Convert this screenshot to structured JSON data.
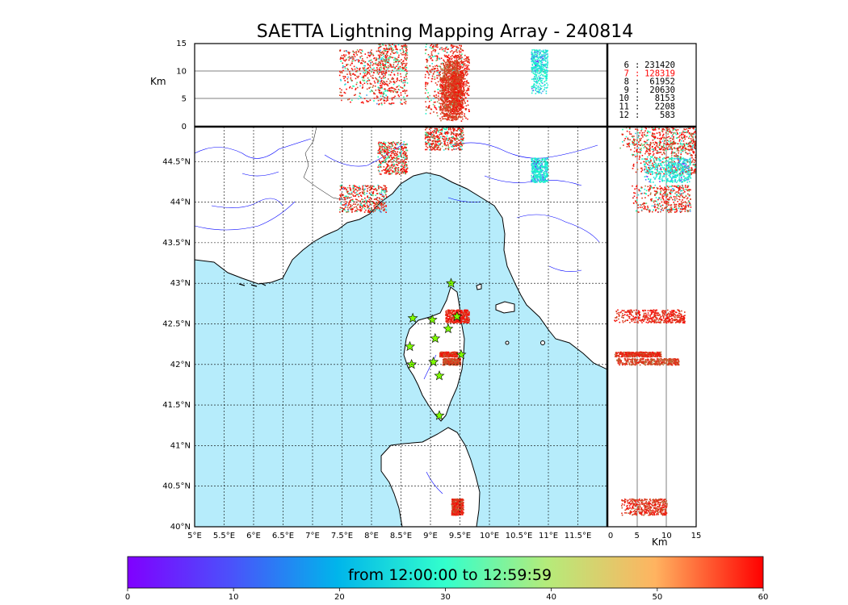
{
  "title": "SAETTA Lightning Mapping Array - 240814",
  "time_range_label": "from 12:00:00 to 12:59:59",
  "altitude_label": "Km",
  "map": {
    "lon_ticks": [
      "5°E",
      "5.5°E",
      "6°E",
      "6.5°E",
      "7°E",
      "7.5°E",
      "8°E",
      "8.5°E",
      "9°E",
      "9.5°E",
      "10°E",
      "10.5°E",
      "11°E",
      "11.5°E"
    ],
    "lat_ticks": [
      "40°N",
      "40.5°N",
      "41°N",
      "41.5°N",
      "42°N",
      "42.5°N",
      "43°N",
      "43.5°N",
      "44°N",
      "44.5°N"
    ],
    "lon_range": [
      5.0,
      12.0
    ],
    "lat_range": [
      40.0,
      44.93
    ],
    "sea_color": "#b6ecfb",
    "land_color": "#ffffff",
    "river_color": "#0000ff",
    "stations": [
      {
        "lon": 9.35,
        "lat": 43.0
      },
      {
        "lon": 8.7,
        "lat": 42.57
      },
      {
        "lon": 9.03,
        "lat": 42.55
      },
      {
        "lon": 9.45,
        "lat": 42.59
      },
      {
        "lon": 9.3,
        "lat": 42.44
      },
      {
        "lon": 9.08,
        "lat": 42.32
      },
      {
        "lon": 8.65,
        "lat": 42.22
      },
      {
        "lon": 9.52,
        "lat": 42.12
      },
      {
        "lon": 9.05,
        "lat": 42.03
      },
      {
        "lon": 8.68,
        "lat": 42.0
      },
      {
        "lon": 9.15,
        "lat": 41.86
      },
      {
        "lon": 9.15,
        "lat": 41.37
      }
    ],
    "station_marker": "star",
    "station_color": "#7fff00"
  },
  "altitude_panel": {
    "ticks": [
      "0",
      "5",
      "10",
      "15"
    ],
    "range_km": [
      0,
      15
    ],
    "gridlines_km": [
      5,
      10
    ]
  },
  "counts_legend": [
    {
      "label": "6",
      "count": "231420",
      "color": "#000000"
    },
    {
      "label": "7",
      "count": "128319",
      "color": "#ff0000"
    },
    {
      "label": "8",
      "count": "61952",
      "color": "#000000"
    },
    {
      "label": "9",
      "count": "20630",
      "color": "#000000"
    },
    {
      "label": "10",
      "count": "8153",
      "color": "#000000"
    },
    {
      "label": "11",
      "count": "2208",
      "color": "#000000"
    },
    {
      "label": "12",
      "count": "583",
      "color": "#000000"
    }
  ],
  "colorbar": {
    "ticks": [
      "0",
      "10",
      "20",
      "30",
      "40",
      "50",
      "60"
    ],
    "range": [
      0,
      60
    ],
    "colormap": "rainbow"
  },
  "chart_data": {
    "type": "scatter",
    "title": "SAETTA Lightning Mapping Array - 240814",
    "color_scale": "minutes after 12:00 (rainbow, 0–60)",
    "clusters": [
      {
        "lon_range": [
          7.45,
          8.25
        ],
        "lat_range": [
          43.88,
          44.22
        ],
        "alt_km_range": [
          4,
          14
        ],
        "minutes_range": [
          10,
          60
        ],
        "dominant_minutes": 58
      },
      {
        "lon_range": [
          8.1,
          8.6
        ],
        "lat_range": [
          44.35,
          44.75
        ],
        "alt_km_range": [
          4,
          15
        ],
        "minutes_range": [
          20,
          60
        ],
        "dominant_minutes": 58
      },
      {
        "lon_range": [
          8.9,
          9.55
        ],
        "lat_range": [
          44.65,
          44.95
        ],
        "alt_km_range": [
          2,
          15
        ],
        "minutes_range": [
          15,
          60
        ],
        "dominant_minutes": 58
      },
      {
        "lon_range": [
          10.7,
          10.98
        ],
        "lat_range": [
          44.25,
          44.55
        ],
        "alt_km_range": [
          6,
          14
        ],
        "minutes_range": [
          2,
          35
        ],
        "dominant_minutes": 22
      },
      {
        "lon_range": [
          9.25,
          9.65
        ],
        "lat_range": [
          42.52,
          42.68
        ],
        "alt_km_range": [
          1,
          13
        ],
        "minutes_range": [
          52,
          60
        ],
        "dominant_minutes": 58
      },
      {
        "lon_range": [
          9.15,
          9.45
        ],
        "lat_range": [
          42.1,
          42.16
        ],
        "alt_km_range": [
          1,
          9
        ],
        "minutes_range": [
          50,
          60
        ],
        "dominant_minutes": 57
      },
      {
        "lon_range": [
          9.2,
          9.5
        ],
        "lat_range": [
          42.0,
          42.08
        ],
        "alt_km_range": [
          1,
          12
        ],
        "minutes_range": [
          48,
          60
        ],
        "dominant_minutes": 55
      },
      {
        "lon_range": [
          9.35,
          9.55
        ],
        "lat_range": [
          40.15,
          40.35
        ],
        "alt_km_range": [
          2,
          10
        ],
        "minutes_range": [
          50,
          60
        ],
        "dominant_minutes": 57
      }
    ]
  }
}
